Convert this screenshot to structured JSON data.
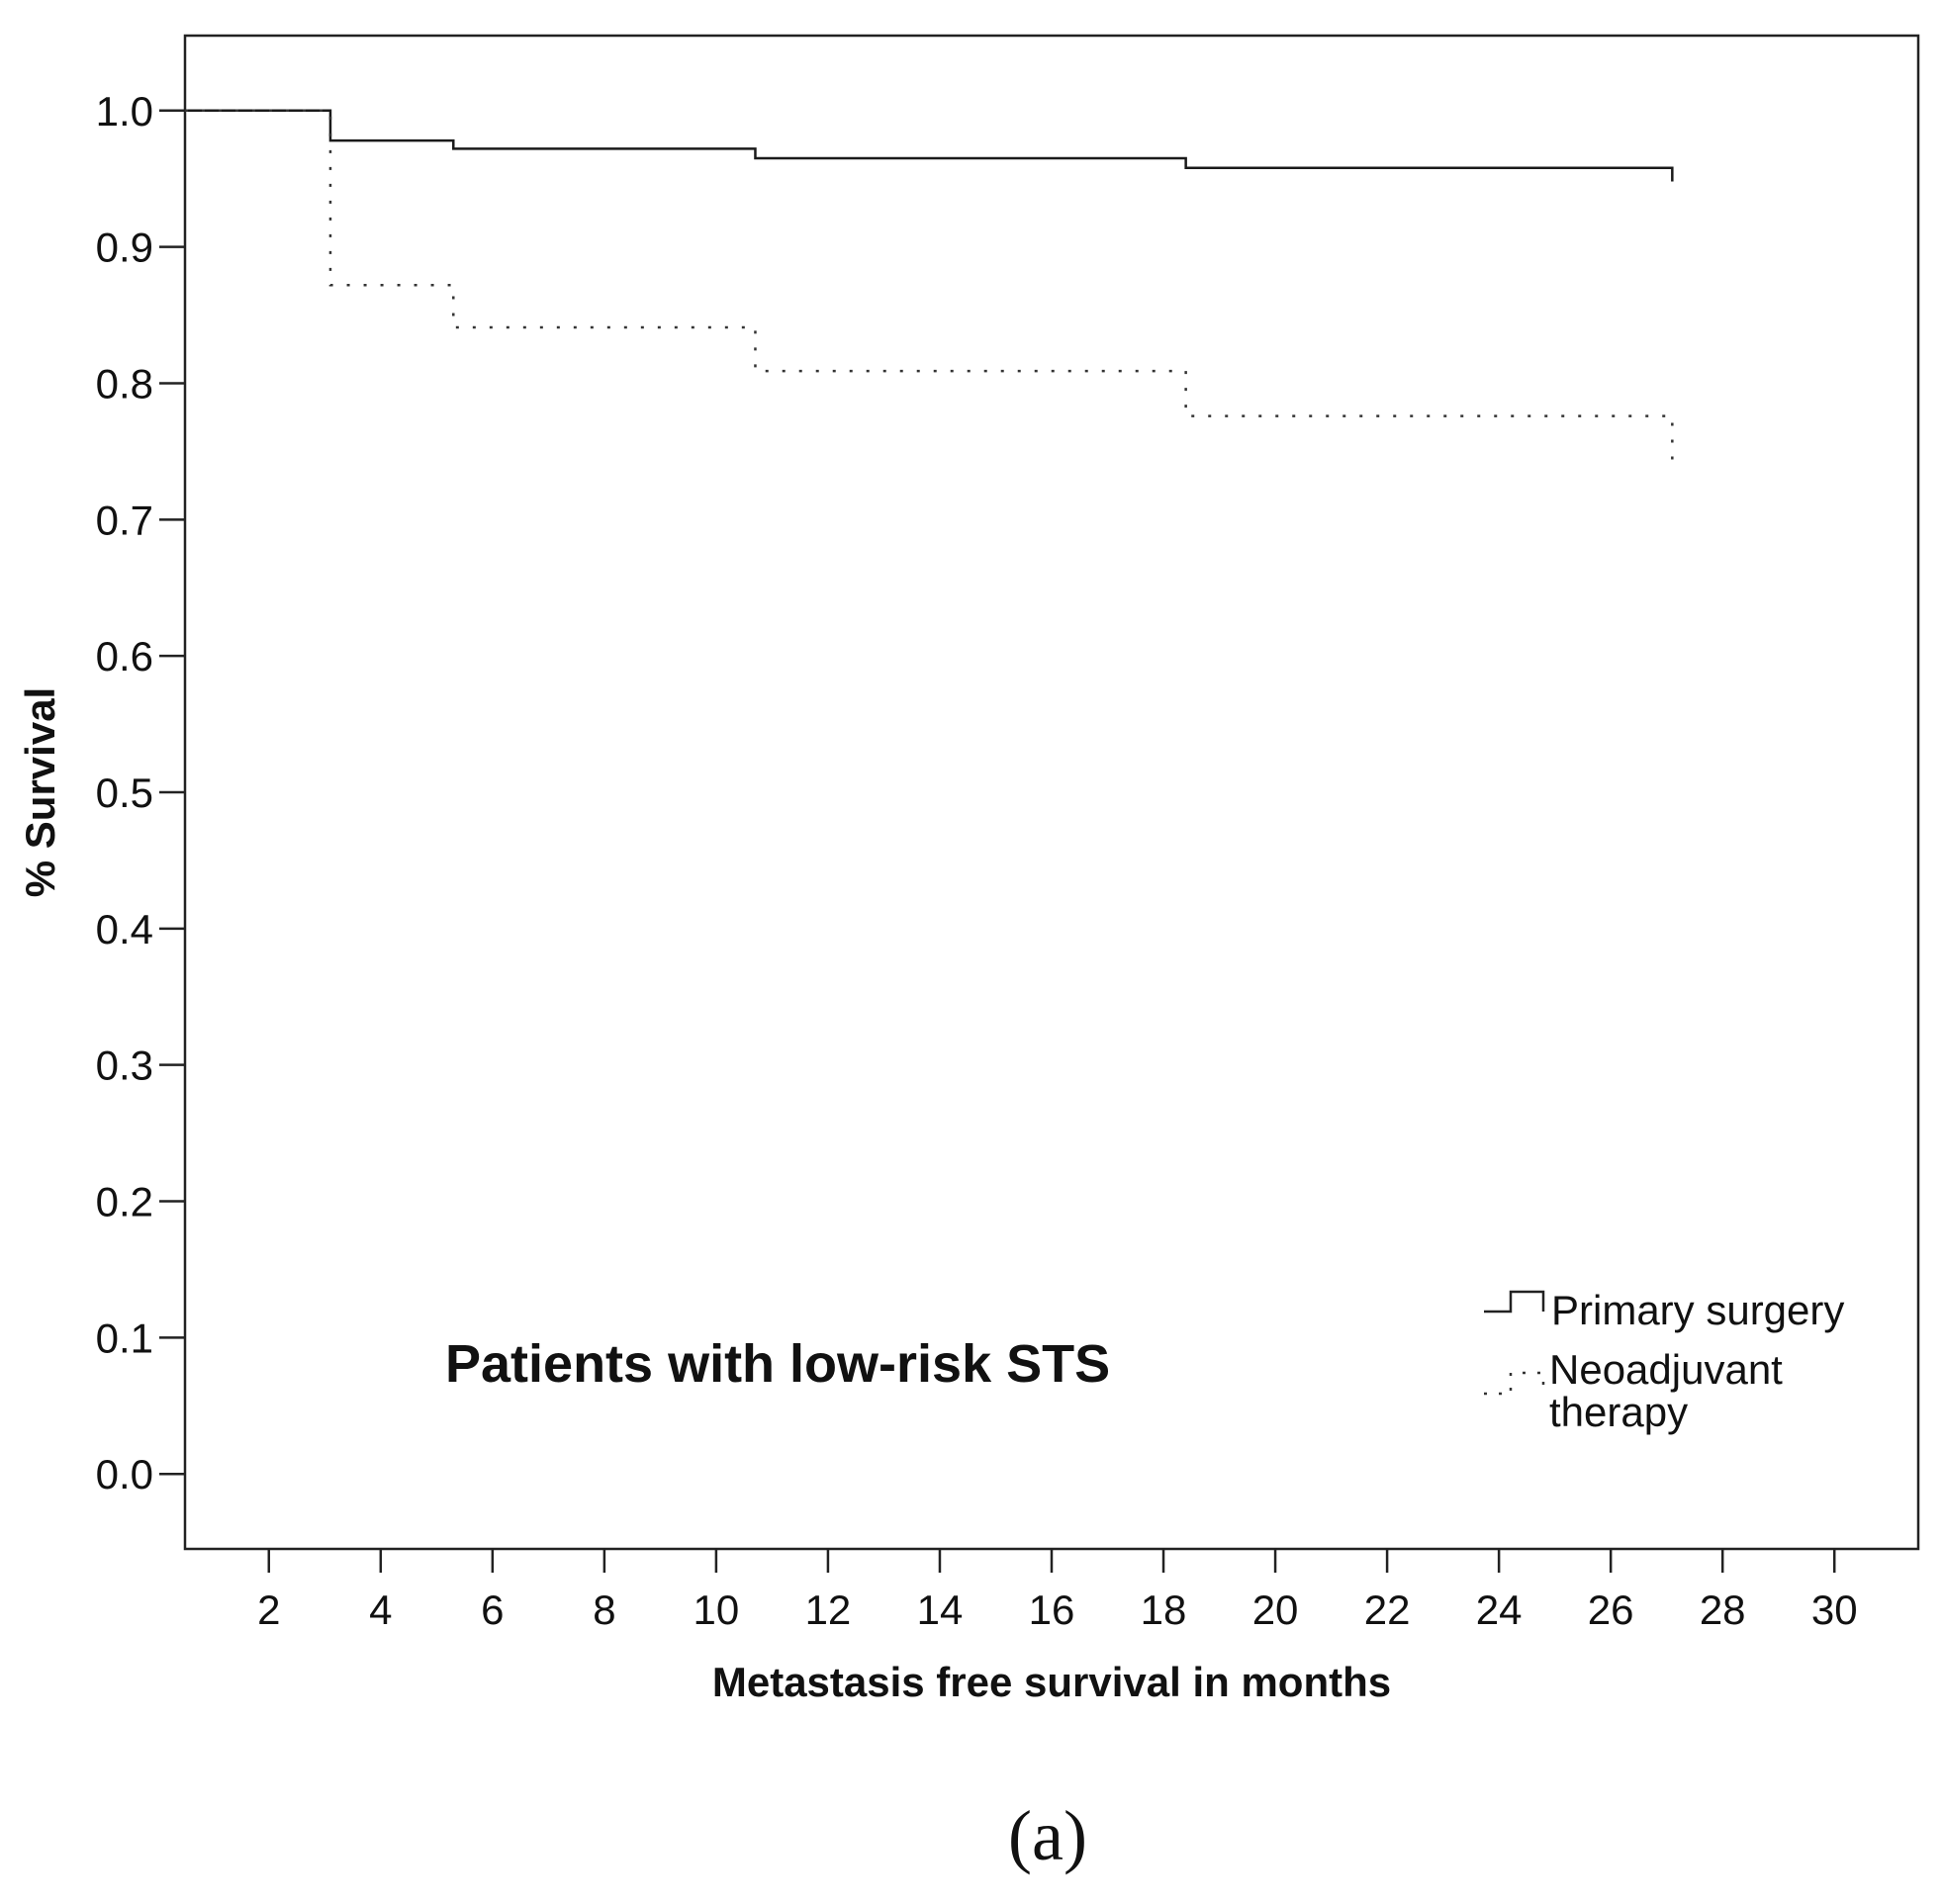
{
  "chart_data": {
    "type": "line",
    "subtype": "kaplan-meier-step",
    "xlabel": "Metastasis free survival in months",
    "ylabel": "% Survival",
    "xlim": [
      0.5,
      31.5
    ],
    "ylim": [
      -0.055,
      1.055
    ],
    "x_ticks": [
      "2",
      "4",
      "6",
      "8",
      "10",
      "12",
      "14",
      "16",
      "18",
      "20",
      "22",
      "24",
      "26",
      "28",
      "30"
    ],
    "y_ticks": [
      "0.0",
      "0.1",
      "0.2",
      "0.3",
      "0.4",
      "0.5",
      "0.6",
      "0.7",
      "0.8",
      "0.9",
      "1.0"
    ],
    "annotation": "Patients with low-risk STS",
    "series": [
      {
        "name": "Primary surgery",
        "style": "solid",
        "times": [
          3.1,
          5.3,
          10.7,
          18.4
        ],
        "survival_start": 1.0,
        "survival": [
          0.978,
          0.972,
          0.965,
          0.958
        ],
        "end_time": 27.1,
        "end_drop": 0.948
      },
      {
        "name": "Neoadjuvant therapy",
        "style": "dotted",
        "times": [
          3.1,
          5.3,
          10.7,
          18.4
        ],
        "survival_start": 1.0,
        "survival": [
          0.872,
          0.841,
          0.809,
          0.776
        ],
        "end_time": 27.1,
        "end_drop": 0.735
      }
    ],
    "legend": {
      "position": "bottom-right",
      "entries": [
        {
          "label": "Primary surgery",
          "style": "solid"
        },
        {
          "label": "Neoadjuvant",
          "label_line2": "therapy",
          "style": "dotted"
        }
      ]
    }
  },
  "caption": "(a)"
}
